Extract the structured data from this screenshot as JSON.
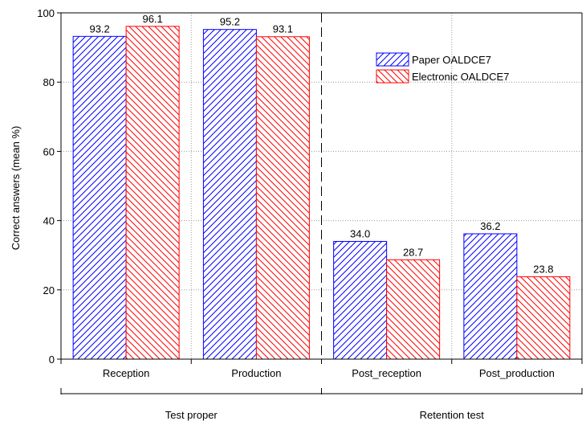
{
  "chart_data": {
    "type": "bar",
    "title": "",
    "xlabel": "",
    "ylabel": "Correct answers (mean %)",
    "ylim": [
      0,
      100
    ],
    "yticks": [
      0,
      20,
      40,
      60,
      80,
      100
    ],
    "grid": true,
    "legend_position": "top-right",
    "categories": [
      "Reception",
      "Production",
      "Post_reception",
      "Post_production"
    ],
    "series": [
      {
        "name": "Paper OALDCE7",
        "values": [
          93.2,
          95.2,
          34.0,
          36.2
        ],
        "value_labels": [
          "93.2",
          "95.2",
          "34.0",
          "36.2"
        ],
        "color": "#0000ff",
        "hatch": "forward-diagonal"
      },
      {
        "name": "Electronic OALDCE7",
        "values": [
          96.1,
          93.1,
          28.7,
          23.8
        ],
        "value_labels": [
          "96.1",
          "93.1",
          "28.7",
          "23.8"
        ],
        "color": "#ff0000",
        "hatch": "backward-diagonal"
      }
    ],
    "groups": [
      {
        "label": "Test proper",
        "categories": [
          "Reception",
          "Production"
        ]
      },
      {
        "label": "Retention test",
        "categories": [
          "Post_reception",
          "Post_production"
        ]
      }
    ]
  }
}
